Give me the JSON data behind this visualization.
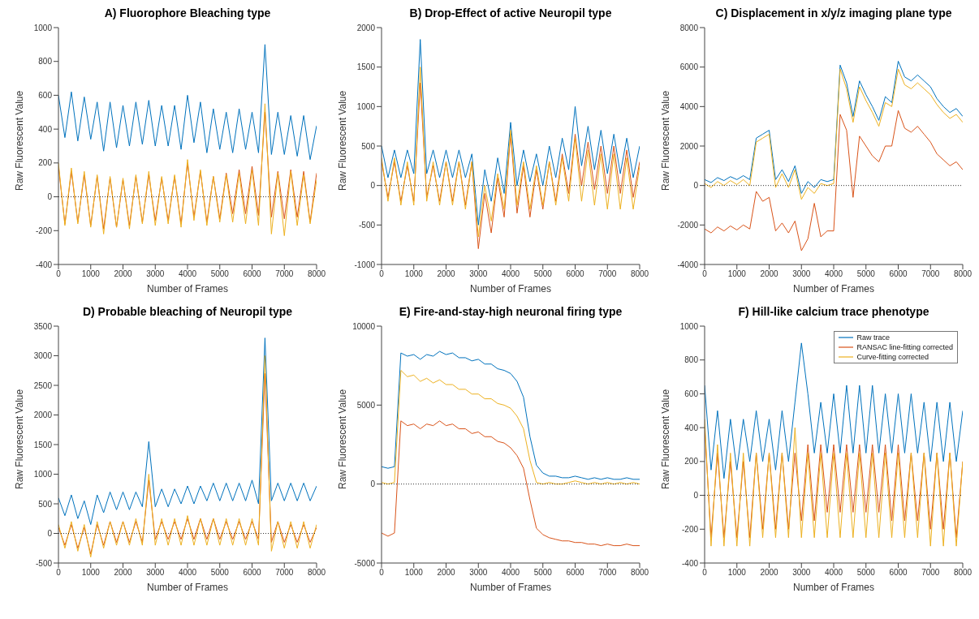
{
  "chart_data": [
    {
      "type": "line",
      "title": "A) Fluorophore Bleaching type",
      "xlabel": "Number of Frames",
      "ylabel": "Raw Fluorescent Value",
      "xlim": [
        0,
        8000
      ],
      "xticks": [
        0,
        1000,
        2000,
        3000,
        4000,
        5000,
        6000,
        7000,
        8000
      ],
      "ylim": [
        -400,
        1000
      ],
      "yticks": [
        -400,
        -200,
        0,
        200,
        400,
        600,
        800,
        1000
      ],
      "ref_lines": [
        {
          "axis": "y",
          "value": 0,
          "line_style": "dotted",
          "color": "#000000"
        }
      ],
      "x": [
        0,
        200,
        400,
        600,
        800,
        1000,
        1200,
        1400,
        1600,
        1800,
        2000,
        2200,
        2400,
        2600,
        2800,
        3000,
        3200,
        3400,
        3600,
        3800,
        4000,
        4200,
        4400,
        4600,
        4800,
        5000,
        5200,
        5400,
        5600,
        5800,
        6000,
        6200,
        6400,
        6600,
        6800,
        7000,
        7200,
        7400,
        7600,
        7800,
        8000
      ],
      "series": [
        {
          "color": "#0072bd",
          "values": [
            600,
            350,
            620,
            330,
            590,
            340,
            560,
            270,
            560,
            290,
            540,
            300,
            560,
            310,
            570,
            300,
            540,
            300,
            540,
            280,
            600,
            320,
            560,
            260,
            520,
            280,
            500,
            260,
            520,
            280,
            500,
            260,
            900,
            250,
            500,
            250,
            480,
            240,
            480,
            220,
            420
          ]
        },
        {
          "color": "#d95319",
          "values": [
            180,
            -160,
            150,
            -150,
            130,
            -170,
            120,
            -190,
            110,
            -180,
            100,
            -170,
            120,
            -150,
            130,
            -140,
            110,
            -140,
            120,
            -160,
            200,
            -120,
            150,
            -150,
            120,
            -130,
            140,
            -100,
            160,
            -100,
            180,
            -110,
            500,
            -120,
            150,
            -130,
            160,
            -120,
            150,
            -150,
            140
          ]
        },
        {
          "color": "#edb120",
          "values": [
            200,
            -170,
            170,
            -160,
            150,
            -180,
            130,
            -220,
            120,
            -180,
            110,
            -190,
            130,
            -160,
            150,
            -170,
            120,
            -160,
            130,
            -180,
            220,
            -140,
            160,
            -170,
            120,
            -150,
            130,
            -150,
            140,
            -160,
            160,
            -170,
            550,
            -220,
            140,
            -230,
            150,
            -170,
            130,
            -160,
            100
          ]
        }
      ]
    },
    {
      "type": "line",
      "title": "B) Drop-Effect of active Neuropil type",
      "xlabel": "Number of Frames",
      "ylabel": "Raw Fluorescent Value",
      "xlim": [
        0,
        8000
      ],
      "xticks": [
        0,
        1000,
        2000,
        3000,
        4000,
        5000,
        6000,
        7000,
        8000
      ],
      "ylim": [
        -1000,
        2000
      ],
      "yticks": [
        -1000,
        -500,
        0,
        500,
        1000,
        1500,
        2000
      ],
      "ref_lines": [
        {
          "axis": "y",
          "value": 0,
          "line_style": "dotted",
          "color": "#000000"
        }
      ],
      "x": [
        0,
        200,
        400,
        600,
        800,
        1000,
        1200,
        1400,
        1600,
        1800,
        2000,
        2200,
        2400,
        2600,
        2800,
        3000,
        3200,
        3400,
        3600,
        3800,
        4000,
        4200,
        4400,
        4600,
        4800,
        5000,
        5200,
        5400,
        5600,
        5800,
        6000,
        6200,
        6400,
        6600,
        6800,
        7000,
        7200,
        7400,
        7600,
        7800,
        8000
      ],
      "series": [
        {
          "color": "#0072bd",
          "values": [
            500,
            100,
            450,
            100,
            450,
            150,
            1850,
            150,
            450,
            100,
            450,
            100,
            450,
            100,
            400,
            -500,
            200,
            -200,
            350,
            -100,
            800,
            0,
            450,
            50,
            400,
            0,
            500,
            100,
            600,
            200,
            1000,
            250,
            750,
            200,
            700,
            150,
            650,
            150,
            600,
            100,
            500
          ]
        },
        {
          "color": "#d95319",
          "values": [
            300,
            -150,
            300,
            -200,
            250,
            -200,
            1300,
            -150,
            250,
            -200,
            300,
            -200,
            300,
            -250,
            300,
            -800,
            -100,
            -600,
            100,
            -400,
            650,
            -350,
            250,
            -400,
            200,
            -300,
            300,
            -200,
            400,
            -100,
            650,
            0,
            550,
            -50,
            500,
            -100,
            500,
            -100,
            450,
            -150,
            300
          ]
        },
        {
          "color": "#edb120",
          "values": [
            350,
            -200,
            350,
            -250,
            300,
            -250,
            1500,
            -200,
            300,
            -250,
            300,
            -250,
            300,
            -300,
            300,
            -650,
            0,
            -450,
            150,
            -300,
            700,
            -250,
            300,
            -300,
            250,
            -250,
            300,
            -250,
            350,
            -200,
            600,
            -200,
            450,
            -250,
            400,
            -300,
            400,
            -300,
            350,
            -300,
            250
          ]
        }
      ]
    },
    {
      "type": "line",
      "title": "C) Displacement in x/y/z imaging plane type",
      "xlabel": "Number of Frames",
      "ylabel": "Raw Fluorescent Value",
      "xlim": [
        0,
        8000
      ],
      "xticks": [
        0,
        1000,
        2000,
        3000,
        4000,
        5000,
        6000,
        7000,
        8000
      ],
      "ylim": [
        -4000,
        8000
      ],
      "yticks": [
        -4000,
        -2000,
        0,
        2000,
        4000,
        6000,
        8000
      ],
      "ref_lines": [
        {
          "axis": "y",
          "value": 0,
          "line_style": "dotted",
          "color": "#000000"
        }
      ],
      "x": [
        0,
        200,
        400,
        600,
        800,
        1000,
        1200,
        1400,
        1600,
        1800,
        2000,
        2200,
        2400,
        2600,
        2800,
        3000,
        3200,
        3400,
        3600,
        3800,
        4000,
        4200,
        4400,
        4600,
        4800,
        5000,
        5200,
        5400,
        5600,
        5800,
        6000,
        6200,
        6400,
        6600,
        6800,
        7000,
        7200,
        7400,
        7600,
        7800,
        8000
      ],
      "series": [
        {
          "color": "#0072bd",
          "values": [
            300,
            150,
            400,
            250,
            450,
            300,
            500,
            300,
            2400,
            2600,
            2800,
            300,
            800,
            200,
            1000,
            -400,
            200,
            -100,
            300,
            200,
            300,
            6100,
            5200,
            3500,
            5300,
            4600,
            4000,
            3300,
            4500,
            4200,
            6300,
            5500,
            5300,
            5600,
            5300,
            5000,
            4400,
            4000,
            3700,
            3900,
            3500
          ]
        },
        {
          "color": "#d95319",
          "values": [
            -2200,
            -2400,
            -2100,
            -2300,
            -2050,
            -2250,
            -2000,
            -2200,
            -300,
            -800,
            -600,
            -2300,
            -1900,
            -2400,
            -1800,
            -3300,
            -2700,
            -900,
            -2600,
            -2300,
            -2300,
            3600,
            2800,
            -600,
            2500,
            2000,
            1500,
            1200,
            2000,
            2000,
            3800,
            2900,
            2700,
            3000,
            2600,
            2200,
            1600,
            1300,
            1000,
            1200,
            800
          ]
        },
        {
          "color": "#edb120",
          "values": [
            100,
            -100,
            200,
            0,
            250,
            50,
            300,
            0,
            2200,
            2400,
            2600,
            -100,
            600,
            -100,
            800,
            -700,
            -100,
            -400,
            100,
            0,
            100,
            5900,
            4900,
            3200,
            5000,
            4300,
            3700,
            3000,
            4200,
            4000,
            5900,
            5100,
            4900,
            5200,
            4900,
            4600,
            4100,
            3700,
            3400,
            3600,
            3200
          ]
        }
      ]
    },
    {
      "type": "line",
      "title": "D) Probable bleaching of Neuropil type",
      "xlabel": "Number of Frames",
      "ylabel": "Raw Fluorescent Value",
      "xlim": [
        0,
        8000
      ],
      "xticks": [
        0,
        1000,
        2000,
        3000,
        4000,
        5000,
        6000,
        7000,
        8000
      ],
      "ylim": [
        -500,
        3500
      ],
      "yticks": [
        -500,
        0,
        500,
        1000,
        1500,
        2000,
        2500,
        3000,
        3500
      ],
      "ref_lines": [
        {
          "axis": "y",
          "value": 0,
          "line_style": "dotted",
          "color": "#000000"
        }
      ],
      "x": [
        0,
        200,
        400,
        600,
        800,
        1000,
        1200,
        1400,
        1600,
        1800,
        2000,
        2200,
        2400,
        2600,
        2800,
        3000,
        3200,
        3400,
        3600,
        3800,
        4000,
        4200,
        4400,
        4600,
        4800,
        5000,
        5200,
        5400,
        5600,
        5800,
        6000,
        6200,
        6400,
        6600,
        6800,
        7000,
        7200,
        7400,
        7600,
        7800,
        8000
      ],
      "series": [
        {
          "color": "#0072bd",
          "values": [
            600,
            300,
            650,
            250,
            550,
            150,
            650,
            350,
            700,
            400,
            700,
            400,
            700,
            450,
            1550,
            450,
            750,
            450,
            750,
            500,
            800,
            500,
            800,
            550,
            850,
            550,
            850,
            550,
            850,
            550,
            900,
            500,
            3300,
            550,
            850,
            550,
            850,
            550,
            850,
            550,
            800
          ]
        },
        {
          "color": "#d95319",
          "values": [
            100,
            -200,
            150,
            -250,
            100,
            -350,
            150,
            -200,
            200,
            -150,
            200,
            -150,
            200,
            -150,
            900,
            -100,
            200,
            -100,
            200,
            -100,
            250,
            -100,
            250,
            -100,
            250,
            -100,
            200,
            -100,
            200,
            -100,
            200,
            -100,
            2700,
            -150,
            200,
            -150,
            150,
            -150,
            150,
            -150,
            100
          ]
        },
        {
          "color": "#edb120",
          "values": [
            150,
            -250,
            200,
            -300,
            150,
            -400,
            200,
            -250,
            200,
            -200,
            200,
            -200,
            250,
            -200,
            1000,
            -200,
            250,
            -200,
            250,
            -200,
            300,
            -200,
            250,
            -200,
            250,
            -200,
            250,
            -200,
            250,
            -200,
            250,
            -200,
            3000,
            -300,
            200,
            -250,
            200,
            -250,
            200,
            -250,
            150
          ]
        }
      ]
    },
    {
      "type": "line",
      "title": "E) Fire-and-stay-high neuronal firing type",
      "xlabel": "Number of Frames",
      "ylabel": "Raw Fluorescent Value",
      "xlim": [
        0,
        8000
      ],
      "xticks": [
        0,
        1000,
        2000,
        3000,
        4000,
        5000,
        6000,
        7000,
        8000
      ],
      "ylim": [
        -5000,
        10000
      ],
      "yticks": [
        -5000,
        0,
        5000,
        10000
      ],
      "ref_lines": [
        {
          "axis": "y",
          "value": 0,
          "line_style": "dotted",
          "color": "#000000"
        }
      ],
      "x": [
        0,
        200,
        400,
        600,
        800,
        1000,
        1200,
        1400,
        1600,
        1800,
        2000,
        2200,
        2400,
        2600,
        2800,
        3000,
        3200,
        3400,
        3600,
        3800,
        4000,
        4200,
        4400,
        4600,
        4800,
        5000,
        5200,
        5400,
        5600,
        5800,
        6000,
        6200,
        6400,
        6600,
        6800,
        7000,
        7200,
        7400,
        7600,
        7800,
        8000
      ],
      "series": [
        {
          "color": "#0072bd",
          "values": [
            1100,
            1000,
            1100,
            8300,
            8100,
            8200,
            7900,
            8200,
            8100,
            8400,
            8200,
            8300,
            8000,
            8000,
            7800,
            7900,
            7600,
            7600,
            7300,
            7200,
            7000,
            6500,
            5500,
            3000,
            1200,
            700,
            500,
            500,
            400,
            400,
            500,
            400,
            300,
            400,
            300,
            400,
            300,
            300,
            400,
            300,
            300
          ]
        },
        {
          "color": "#d95319",
          "values": [
            -3100,
            -3300,
            -3100,
            4000,
            3700,
            3800,
            3500,
            3800,
            3700,
            4000,
            3700,
            3800,
            3500,
            3500,
            3200,
            3300,
            3000,
            3000,
            2700,
            2600,
            2300,
            1800,
            1000,
            -1000,
            -2800,
            -3200,
            -3400,
            -3500,
            -3600,
            -3600,
            -3700,
            -3700,
            -3800,
            -3800,
            -3900,
            -3800,
            -3900,
            -3900,
            -3800,
            -3900,
            -3900
          ]
        },
        {
          "color": "#edb120",
          "values": [
            100,
            0,
            100,
            7200,
            6800,
            6900,
            6500,
            6700,
            6400,
            6600,
            6300,
            6300,
            6000,
            6000,
            5700,
            5700,
            5400,
            5400,
            5100,
            5000,
            4800,
            4300,
            3500,
            1500,
            100,
            0,
            100,
            0,
            0,
            100,
            200,
            100,
            0,
            100,
            0,
            100,
            0,
            100,
            0,
            100,
            0
          ]
        }
      ]
    },
    {
      "type": "line",
      "title": "F) Hill-like calcium trace phenotype",
      "xlabel": "Number of Frames",
      "ylabel": "Raw Fluorescent Value",
      "xlim": [
        0,
        8000
      ],
      "xticks": [
        0,
        1000,
        2000,
        3000,
        4000,
        5000,
        6000,
        7000,
        8000
      ],
      "ylim": [
        -400,
        1000
      ],
      "yticks": [
        -400,
        -200,
        0,
        200,
        400,
        600,
        800,
        1000
      ],
      "ref_lines": [
        {
          "axis": "y",
          "value": 0,
          "line_style": "dotted",
          "color": "#000000"
        }
      ],
      "legend": "top right",
      "x": [
        0,
        200,
        400,
        600,
        800,
        1000,
        1200,
        1400,
        1600,
        1800,
        2000,
        2200,
        2400,
        2600,
        2800,
        3000,
        3200,
        3400,
        3600,
        3800,
        4000,
        4200,
        4400,
        4600,
        4800,
        5000,
        5200,
        5400,
        5600,
        5800,
        6000,
        6200,
        6400,
        6600,
        6800,
        7000,
        7200,
        7400,
        7600,
        7800,
        8000
      ],
      "series": [
        {
          "name": "Raw trace",
          "color": "#0072bd",
          "values": [
            650,
            150,
            500,
            100,
            450,
            150,
            450,
            200,
            500,
            200,
            450,
            150,
            500,
            200,
            550,
            900,
            600,
            250,
            550,
            250,
            600,
            250,
            650,
            250,
            650,
            250,
            650,
            250,
            600,
            250,
            600,
            250,
            600,
            250,
            550,
            200,
            550,
            200,
            550,
            200,
            500
          ]
        },
        {
          "name": "RANSAC line-fitting corrected",
          "color": "#d95319",
          "values": [
            400,
            -250,
            250,
            -250,
            200,
            -250,
            200,
            -250,
            250,
            -200,
            250,
            -200,
            250,
            -200,
            250,
            -150,
            300,
            -150,
            300,
            -100,
            300,
            -100,
            300,
            -100,
            300,
            -100,
            300,
            -100,
            300,
            -150,
            300,
            -150,
            250,
            -150,
            250,
            -200,
            250,
            -200,
            250,
            -250,
            200
          ]
        },
        {
          "name": "Curve-fitting corrected",
          "color": "#edb120",
          "values": [
            450,
            -300,
            300,
            -300,
            250,
            -300,
            250,
            -300,
            250,
            -250,
            250,
            -250,
            250,
            -250,
            400,
            -250,
            250,
            -250,
            250,
            -250,
            250,
            -250,
            250,
            -250,
            250,
            -250,
            250,
            -250,
            250,
            -250,
            250,
            -250,
            250,
            -250,
            250,
            -300,
            250,
            -300,
            250,
            -300,
            200
          ]
        }
      ]
    }
  ]
}
